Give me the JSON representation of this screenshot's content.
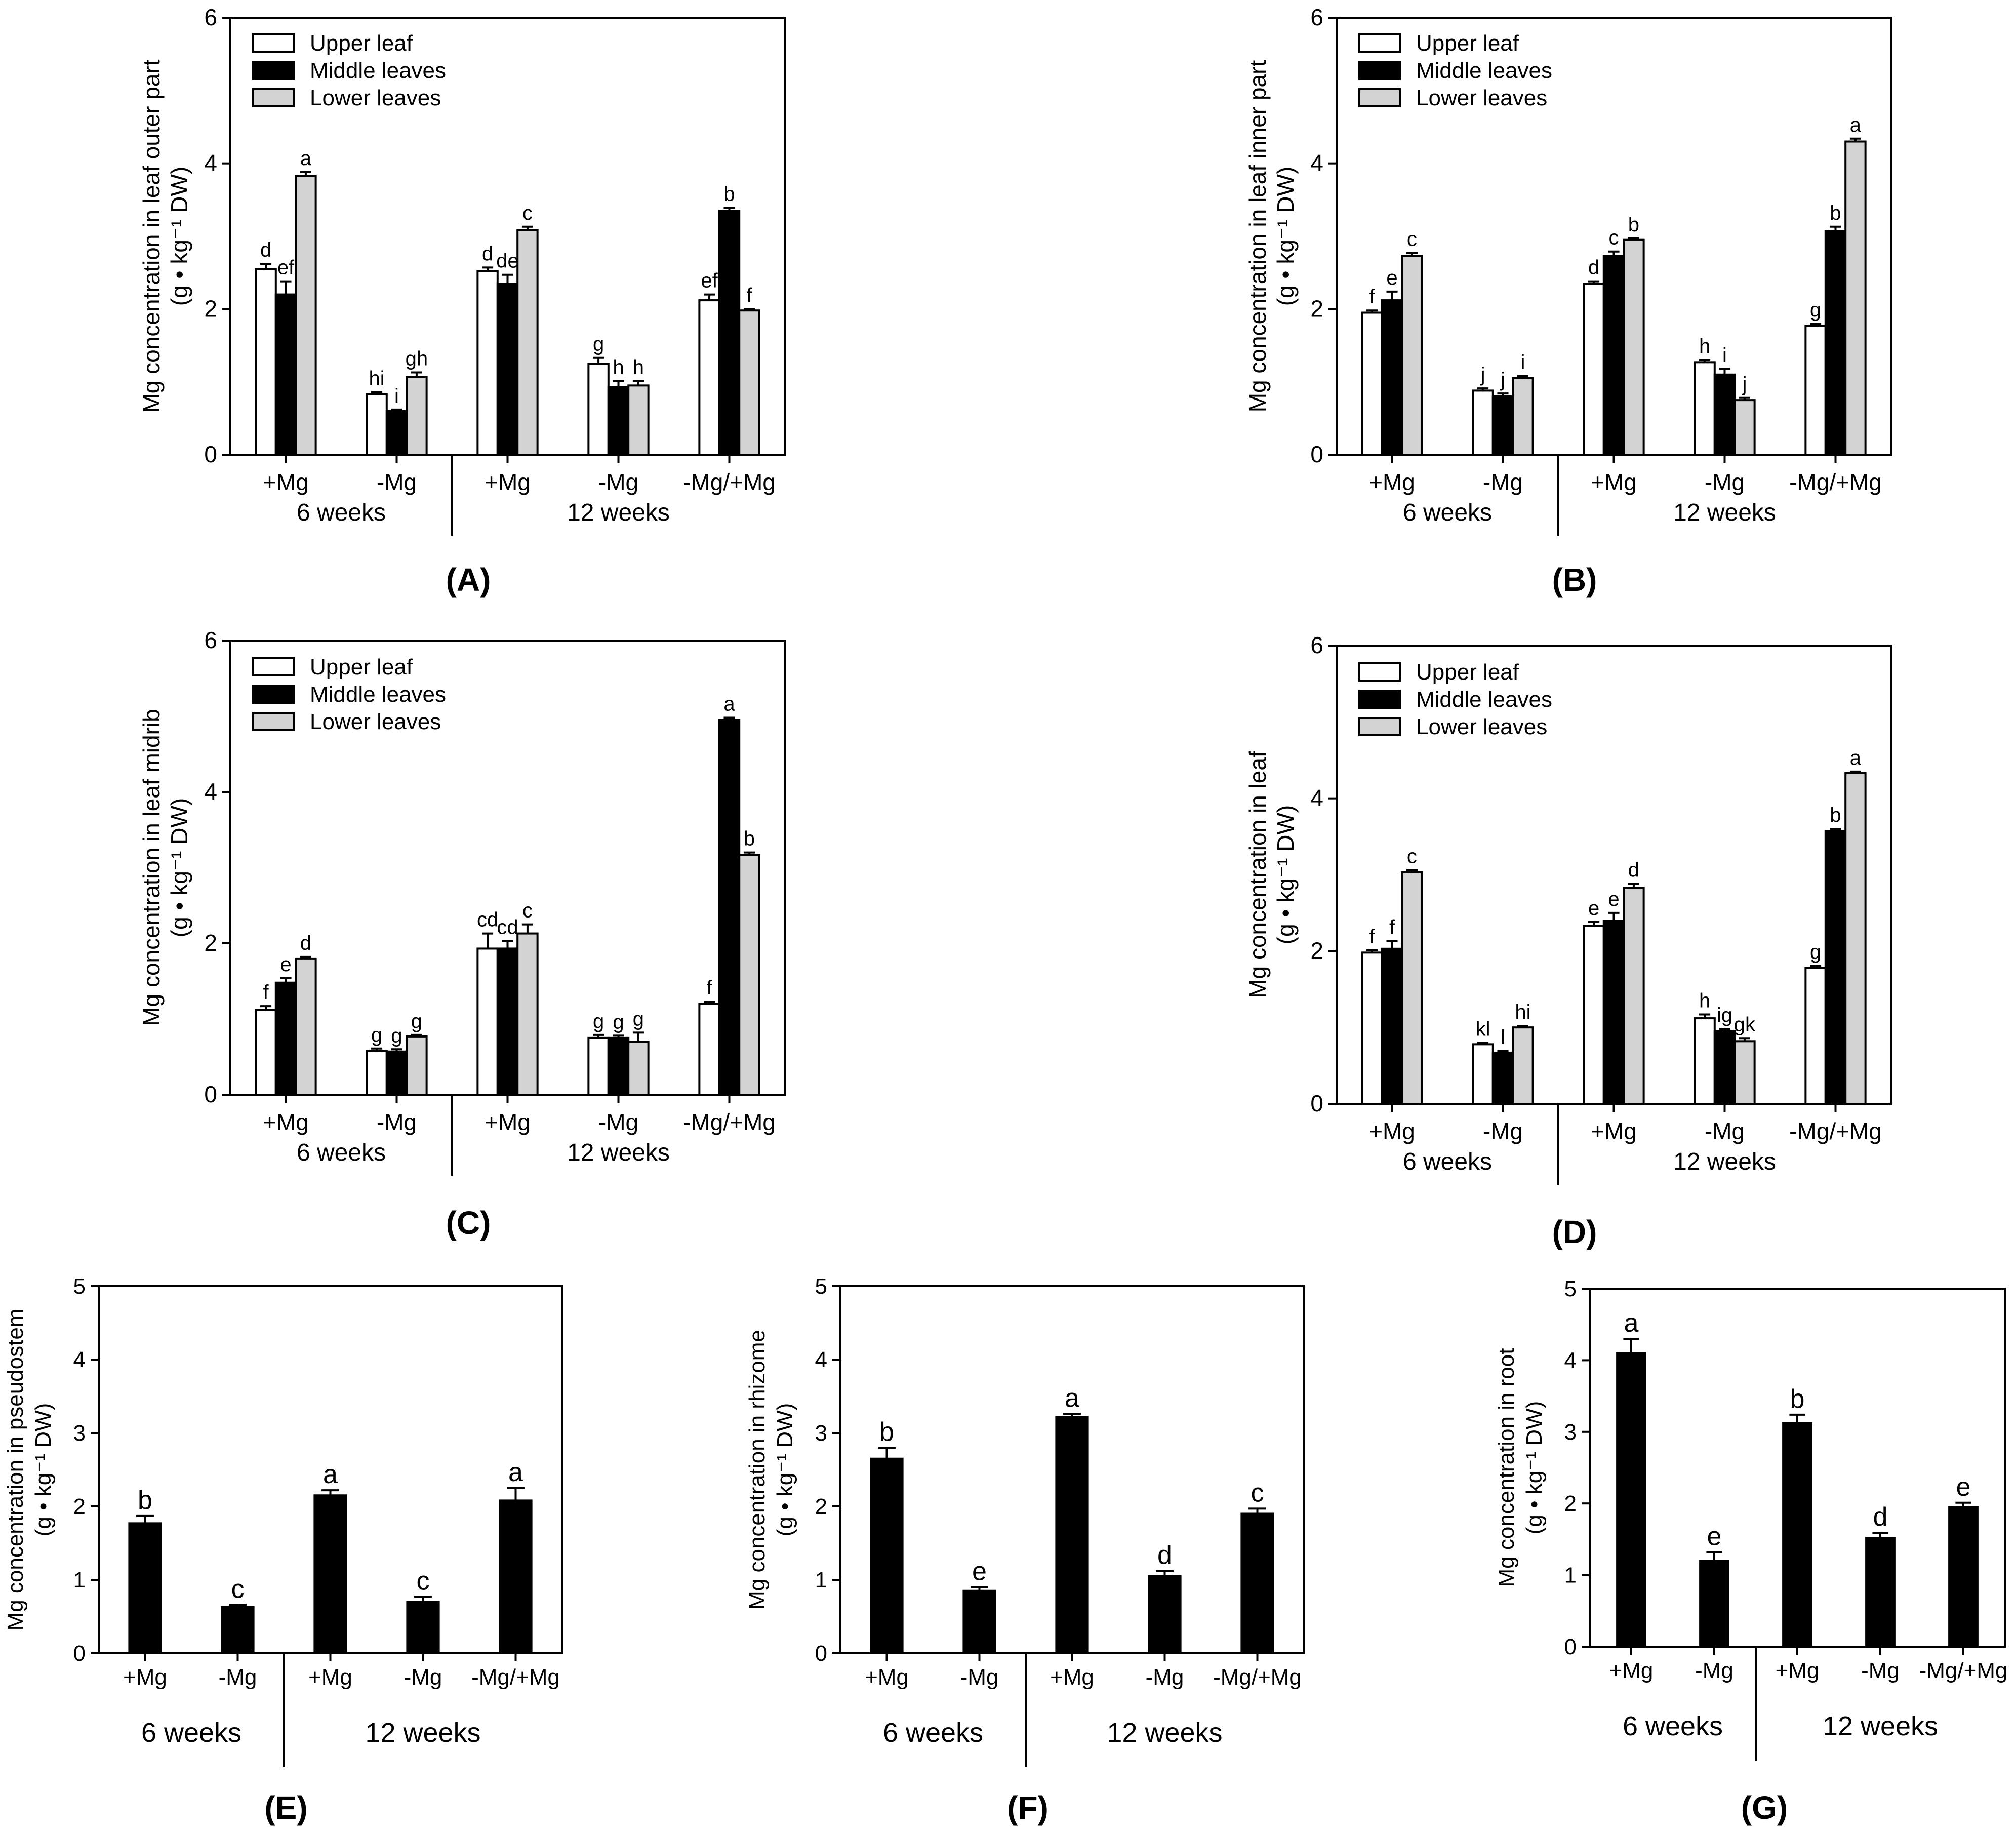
{
  "colors": {
    "upper": "#ffffff",
    "middle": "#000000",
    "lower": "#d3d3d3",
    "axis": "#000000"
  },
  "chart_data": [
    {
      "type": "bar",
      "panel": "(A)",
      "ylabel": [
        "Mg concentration in leaf outer part",
        "(g • kg⁻¹ DW)"
      ],
      "ylim": [
        0,
        6
      ],
      "yticks": [
        "0",
        "2",
        "4",
        "6"
      ],
      "categories": [
        "+Mg",
        "-Mg",
        "+Mg",
        "-Mg",
        "-Mg/+Mg"
      ],
      "groups": [
        "6 weeks",
        "12 weeks"
      ],
      "legend": {
        "position": "top-left",
        "entries": [
          "Upper leaf",
          "Middle leaves",
          "Lower leaves"
        ]
      },
      "series": [
        {
          "name": "Upper leaf",
          "values": [
            2.55,
            0.83,
            2.52,
            1.25,
            2.12
          ],
          "errors": [
            0.07,
            0.03,
            0.05,
            0.08,
            0.08
          ],
          "letters": [
            "d",
            "hi",
            "d",
            "g",
            "ef"
          ]
        },
        {
          "name": "Middle leaves",
          "values": [
            2.2,
            0.6,
            2.35,
            0.93,
            3.35
          ],
          "errors": [
            0.18,
            0.02,
            0.12,
            0.08,
            0.04
          ],
          "letters": [
            "ef",
            "i",
            "de",
            "h",
            "b"
          ]
        },
        {
          "name": "Lower leaves",
          "values": [
            3.83,
            1.07,
            3.08,
            0.95,
            1.98
          ],
          "errors": [
            0.05,
            0.06,
            0.05,
            0.06,
            0.02
          ],
          "letters": [
            "a",
            "gh",
            "c",
            "h",
            "f"
          ]
        }
      ]
    },
    {
      "type": "bar",
      "panel": "(B)",
      "ylabel": [
        "Mg concentration in leaf inner part",
        "(g • kg⁻¹ DW)"
      ],
      "ylim": [
        0,
        6
      ],
      "yticks": [
        "0",
        "2",
        "4",
        "6"
      ],
      "categories": [
        "+Mg",
        "-Mg",
        "+Mg",
        "-Mg",
        "-Mg/+Mg"
      ],
      "groups": [
        "6 weeks",
        "12 weeks"
      ],
      "legend": {
        "position": "top-left",
        "entries": [
          "Upper leaf",
          "Middle leaves",
          "Lower leaves"
        ]
      },
      "series": [
        {
          "name": "Upper leaf",
          "values": [
            1.95,
            0.88,
            2.35,
            1.27,
            1.77
          ],
          "errors": [
            0.03,
            0.03,
            0.03,
            0.03,
            0.03
          ],
          "letters": [
            "f",
            "j",
            "d",
            "h",
            "g"
          ]
        },
        {
          "name": "Middle leaves",
          "values": [
            2.12,
            0.8,
            2.73,
            1.1,
            3.07
          ],
          "errors": [
            0.12,
            0.04,
            0.06,
            0.08,
            0.06
          ],
          "letters": [
            "e",
            "j",
            "c",
            "i",
            "b"
          ]
        },
        {
          "name": "Lower leaves",
          "values": [
            2.73,
            1.05,
            2.95,
            0.75,
            4.3
          ],
          "errors": [
            0.04,
            0.03,
            0.02,
            0.03,
            0.04
          ],
          "letters": [
            "c",
            "i",
            "b",
            "j",
            "a"
          ]
        }
      ]
    },
    {
      "type": "bar",
      "panel": "(C)",
      "ylabel": [
        "Mg concentration in leaf midrib",
        "(g • kg⁻¹ DW)"
      ],
      "ylim": [
        0,
        6
      ],
      "yticks": [
        "0",
        "2",
        "4",
        "6"
      ],
      "categories": [
        "+Mg",
        "-Mg",
        "+Mg",
        "-Mg",
        "-Mg/+Mg"
      ],
      "groups": [
        "6 weeks",
        "12 weeks"
      ],
      "legend": {
        "position": "top-left",
        "entries": [
          "Upper leaf",
          "Middle leaves",
          "Lower leaves"
        ]
      },
      "series": [
        {
          "name": "Upper leaf",
          "values": [
            1.12,
            0.58,
            1.93,
            0.75,
            1.2
          ],
          "errors": [
            0.05,
            0.03,
            0.2,
            0.04,
            0.03
          ],
          "letters": [
            "f",
            "g",
            "cd",
            "g",
            "f"
          ]
        },
        {
          "name": "Middle leaves",
          "values": [
            1.48,
            0.57,
            1.93,
            0.75,
            4.95
          ],
          "errors": [
            0.06,
            0.03,
            0.1,
            0.03,
            0.03
          ],
          "letters": [
            "e",
            "g",
            "cd",
            "g",
            "a"
          ]
        },
        {
          "name": "Lower leaves",
          "values": [
            1.8,
            0.77,
            2.13,
            0.7,
            3.17
          ],
          "errors": [
            0.02,
            0.02,
            0.12,
            0.12,
            0.03
          ],
          "letters": [
            "d",
            "g",
            "c",
            "g",
            "b"
          ]
        }
      ]
    },
    {
      "type": "bar",
      "panel": "(D)",
      "ylabel": [
        "Mg concentration in leaf",
        "(g • kg⁻¹ DW)"
      ],
      "ylim": [
        0,
        6
      ],
      "yticks": [
        "0",
        "2",
        "4",
        "6"
      ],
      "categories": [
        "+Mg",
        "-Mg",
        "+Mg",
        "-Mg",
        "-Mg/+Mg"
      ],
      "groups": [
        "6 weeks",
        "12 weeks"
      ],
      "legend": {
        "position": "top-left",
        "entries": [
          "Upper leaf",
          "Middle leaves",
          "Lower leaves"
        ]
      },
      "series": [
        {
          "name": "Upper leaf",
          "values": [
            1.98,
            0.78,
            2.33,
            1.12,
            1.78
          ],
          "errors": [
            0.03,
            0.02,
            0.05,
            0.05,
            0.03
          ],
          "letters": [
            "f",
            "kl",
            "e",
            "h",
            "g"
          ]
        },
        {
          "name": "Middle leaves",
          "values": [
            2.03,
            0.67,
            2.4,
            0.95,
            3.57
          ],
          "errors": [
            0.1,
            0.02,
            0.1,
            0.03,
            0.03
          ],
          "letters": [
            "f",
            "l",
            "e",
            "ig",
            "b"
          ]
        },
        {
          "name": "Lower leaves",
          "values": [
            3.03,
            1.0,
            2.83,
            0.82,
            4.33
          ],
          "errors": [
            0.03,
            0.02,
            0.05,
            0.04,
            0.02
          ],
          "letters": [
            "c",
            "hi",
            "d",
            "gk",
            "a"
          ]
        }
      ]
    },
    {
      "type": "bar",
      "panel": "(E)",
      "ylabel": [
        "Mg concentration in pseudostem",
        "(g • kg⁻¹ DW)"
      ],
      "ylim": [
        0,
        5
      ],
      "yticks": [
        "0",
        "1",
        "2",
        "3",
        "4",
        "5"
      ],
      "categories": [
        "+Mg",
        "-Mg",
        "+Mg",
        "-Mg",
        "-Mg/+Mg"
      ],
      "groups": [
        "6 weeks",
        "12 weeks"
      ],
      "series": [
        {
          "values": [
            1.77,
            0.63,
            2.15,
            0.7,
            2.08
          ],
          "errors": [
            0.1,
            0.03,
            0.07,
            0.07,
            0.17
          ],
          "letters": [
            "b",
            "c",
            "a",
            "c",
            "a"
          ]
        }
      ]
    },
    {
      "type": "bar",
      "panel": "(F)",
      "ylabel": [
        "Mg concentration in rhizome",
        "(g • kg⁻¹ DW)"
      ],
      "ylim": [
        0,
        5
      ],
      "yticks": [
        "0",
        "1",
        "2",
        "3",
        "4",
        "5"
      ],
      "categories": [
        "+Mg",
        "-Mg",
        "+Mg",
        "-Mg",
        "-Mg/+Mg"
      ],
      "groups": [
        "6 weeks",
        "12 weeks"
      ],
      "series": [
        {
          "values": [
            2.65,
            0.85,
            3.22,
            1.05,
            1.9
          ],
          "errors": [
            0.15,
            0.05,
            0.04,
            0.07,
            0.07
          ],
          "letters": [
            "b",
            "e",
            "a",
            "d",
            "c"
          ]
        }
      ]
    },
    {
      "type": "bar",
      "panel": "(G)",
      "ylabel": [
        "Mg concentration in root",
        "(g • kg⁻¹ DW)"
      ],
      "ylim": [
        0,
        5
      ],
      "yticks": [
        "0",
        "1",
        "2",
        "3",
        "4",
        "5"
      ],
      "categories": [
        "+Mg",
        "-Mg",
        "+Mg",
        "-Mg",
        "-Mg/+Mg"
      ],
      "groups": [
        "6 weeks",
        "12 weeks"
      ],
      "series": [
        {
          "values": [
            4.1,
            1.2,
            3.12,
            1.52,
            1.95
          ],
          "errors": [
            0.2,
            0.12,
            0.12,
            0.07,
            0.06
          ],
          "letters": [
            "a",
            "e",
            "b",
            "d",
            "e"
          ]
        }
      ]
    }
  ]
}
